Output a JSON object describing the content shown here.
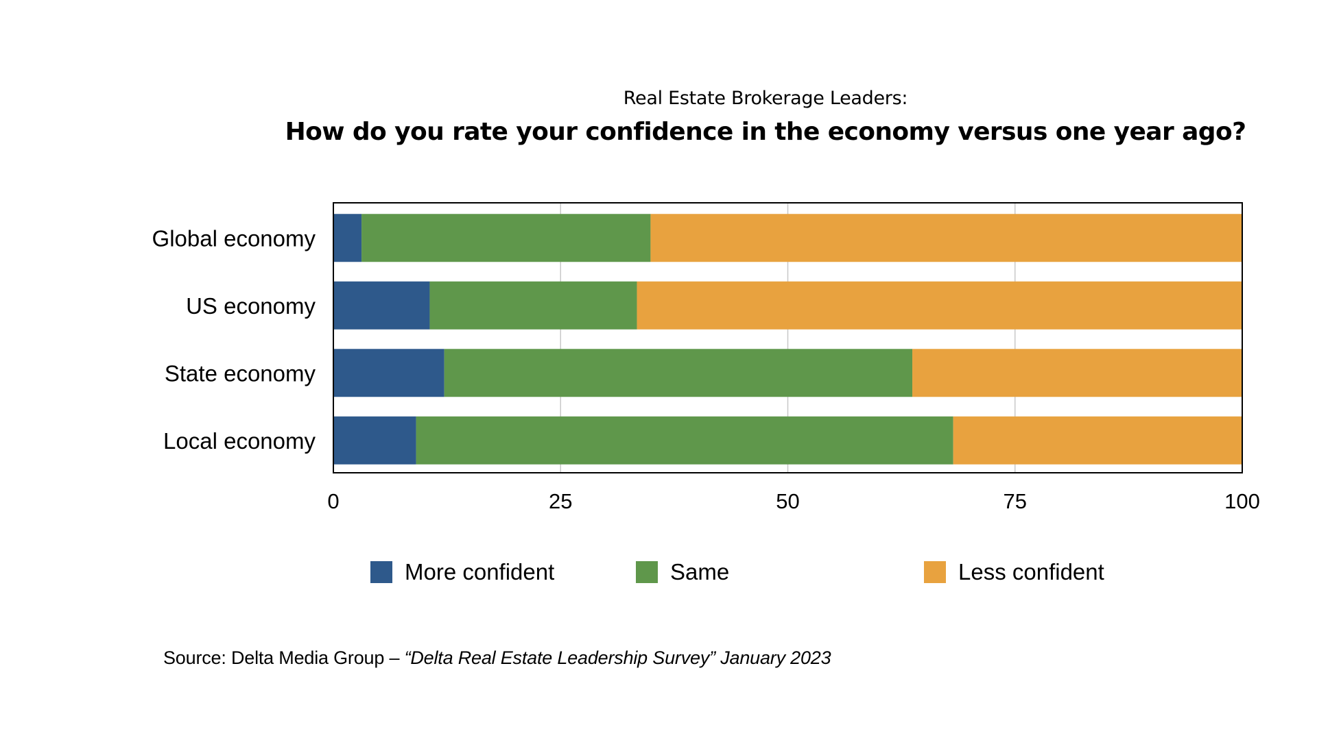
{
  "chart_data": {
    "type": "bar",
    "orientation": "horizontal",
    "stacked": true,
    "subtitle": "Real Estate Brokerage Leaders:",
    "title": "How do you rate your confidence in the economy versus one year ago?",
    "categories": [
      "Global economy",
      "US economy",
      "State economy",
      "Local economy"
    ],
    "series": [
      {
        "name": "More confident",
        "color": "#2e598b",
        "values": [
          3.1,
          10.6,
          12.2,
          9.1
        ]
      },
      {
        "name": "Same",
        "color": "#5f974b",
        "values": [
          31.8,
          22.8,
          51.5,
          59.1
        ]
      },
      {
        "name": "Less confident",
        "color": "#e8a23f",
        "values": [
          65.1,
          66.6,
          36.3,
          31.8
        ]
      }
    ],
    "xlabel": "",
    "ylabel": "",
    "xlim": [
      0,
      100
    ],
    "xticks": [
      0,
      25,
      50,
      75,
      100
    ],
    "xtick_labels": [
      "0",
      "25",
      "50",
      "75",
      "100"
    ],
    "grid": "vertical",
    "legend_position": "bottom"
  },
  "source": {
    "prefix": "Source: Delta Media Group – ",
    "italic": "“Delta Real Estate Leadership Survey” January 2023"
  }
}
